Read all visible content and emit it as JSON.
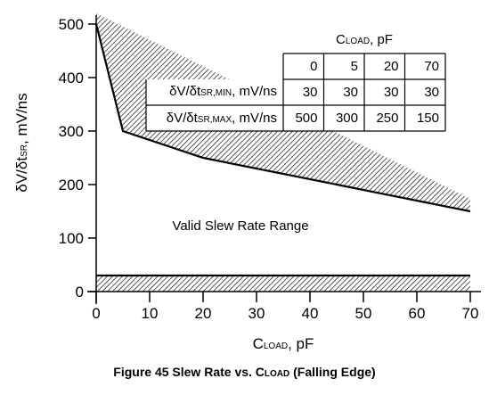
{
  "chart_data": {
    "type": "line",
    "title": "Figure 45 Slew Rate vs. CLOAD (Falling Edge)",
    "title_main": "Figure 45 Slew Rate vs. C",
    "title_sub": "LOAD",
    "title_tail": " (Falling Edge)",
    "xlabel": {
      "main": "C",
      "sub": "LOAD",
      "tail": ", pF"
    },
    "ylabel": {
      "main": "δV/δt",
      "sub": "SR",
      "tail": ", mV/ns"
    },
    "xlim": [
      0,
      70
    ],
    "ylim": [
      0,
      500
    ],
    "x_ticks": [
      0,
      10,
      20,
      30,
      40,
      50,
      60,
      70
    ],
    "y_ticks": [
      0,
      100,
      200,
      300,
      400,
      500
    ],
    "series": [
      {
        "name": "δV/δtSR,MAX",
        "x": [
          0,
          5,
          20,
          70
        ],
        "y": [
          500,
          300,
          250,
          150
        ]
      },
      {
        "name": "δV/δtSR,MIN",
        "x": [
          0,
          5,
          20,
          70
        ],
        "y": [
          30,
          30,
          30,
          30
        ]
      }
    ],
    "hatched_regions": [
      "above max line",
      "below min line (to 0)"
    ],
    "annotation": "Valid Slew Rate Range",
    "table": {
      "header_main": "C",
      "header_sub": "LOAD",
      "header_tail": ", pF",
      "columns": [
        "0",
        "5",
        "20",
        "70"
      ],
      "rows": [
        {
          "label_main": "δV/δt",
          "label_sub": "SR,MIN",
          "label_tail": ", mV/ns",
          "values": [
            "30",
            "30",
            "30",
            "30"
          ]
        },
        {
          "label_main": "δV/δt",
          "label_sub": "SR,MAX",
          "label_tail": ", mV/ns",
          "values": [
            "500",
            "300",
            "250",
            "150"
          ]
        }
      ]
    }
  }
}
